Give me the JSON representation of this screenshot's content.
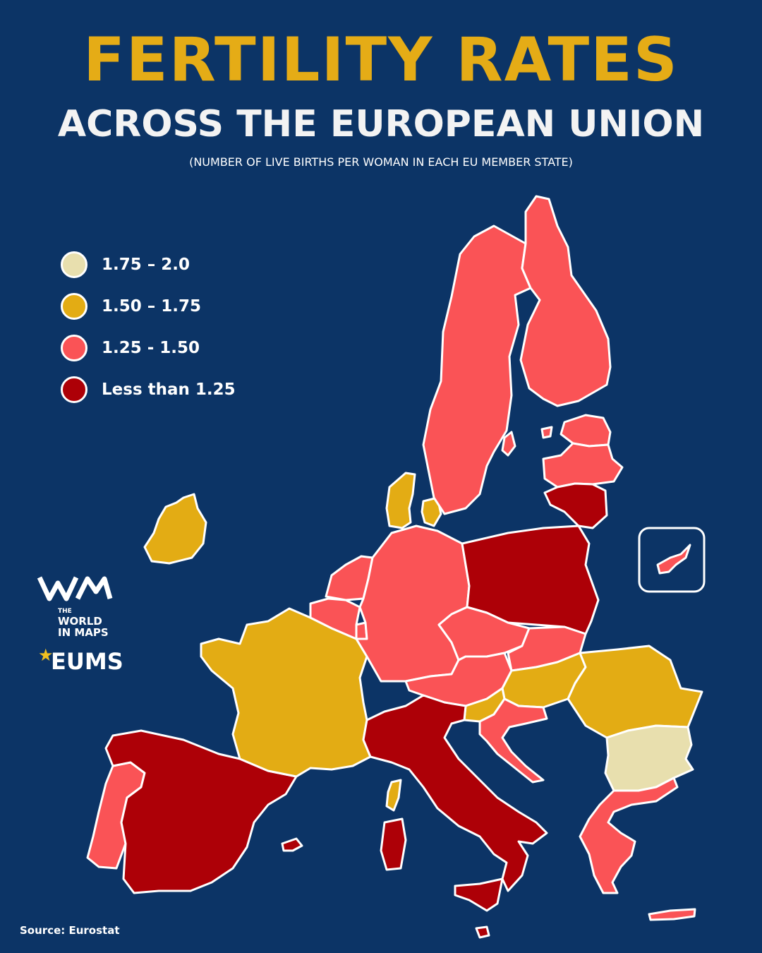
{
  "header": {
    "title": "FERTILITY RATES",
    "subtitle": "ACROSS THE EUROPEAN UNION",
    "note": "(NUMBER OF LIVE BIRTHS PER WOMAN IN EACH EU MEMBER STATE)"
  },
  "legend": [
    {
      "label": "1.75 – 2.0",
      "color": "#e8dfae"
    },
    {
      "label": "1.50 – 1.75",
      "color": "#e3ac14"
    },
    {
      "label": "1.25 - 1.50",
      "color": "#fa5356"
    },
    {
      "label": "Less than 1.25",
      "color": "#ad0007"
    }
  ],
  "categories": {
    "c1": "#e8dfae",
    "c2": "#e3ac14",
    "c3": "#fa5356",
    "c4": "#ad0007"
  },
  "regions": {
    "ireland": "c2",
    "denmark": "c2",
    "france": "c2",
    "slovenia": "c2",
    "hungary": "c2",
    "romania": "c2",
    "bulgaria": "c1",
    "portugal": "c3",
    "belgium": "c3",
    "netherlands": "c3",
    "luxembourg": "c3",
    "germany": "c3",
    "czechia": "c3",
    "austria": "c3",
    "slovakia": "c3",
    "croatia": "c3",
    "greece": "c3",
    "crete": "c3",
    "sweden": "c3",
    "finland": "c3",
    "estonia": "c3",
    "latvia": "c3",
    "cyprus": "c3",
    "gotland": "c3",
    "spain": "c4",
    "italy": "c4",
    "sicily": "c4",
    "sardinia": "c4",
    "poland": "c4",
    "lithuania": "c4",
    "malta": "c4",
    "balearics": "c4",
    "corsica": "c2"
  },
  "brand": {
    "logo_small": "THE",
    "logo_line1": "WORLD",
    "logo_line2": "IN MAPS",
    "eums": "EUMS"
  },
  "source": "Source: Eurostat"
}
